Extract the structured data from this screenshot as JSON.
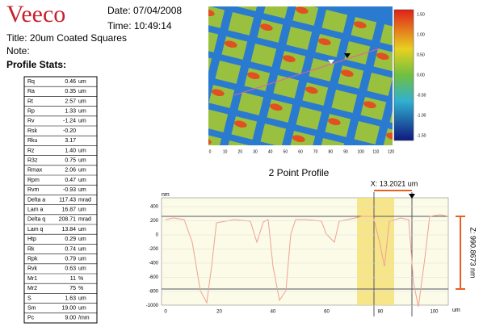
{
  "header": {
    "logo": "Veeco",
    "date": "Date: 07/04/2008",
    "time": "Time: 10:49:14",
    "title": "Title: 20um Coated Squares",
    "note": "Note:",
    "stats_heading": "Profile Stats:"
  },
  "stats": {
    "rows": [
      [
        "Rq",
        "0.46",
        "um"
      ],
      [
        "Ra",
        "0.35",
        "um"
      ],
      [
        "Rt",
        "2.57",
        "um"
      ],
      [
        "Rp",
        "1.33",
        "um"
      ],
      [
        "Rv",
        "-1.24",
        "um"
      ],
      [
        "Rsk",
        "-0.20",
        ""
      ],
      [
        "Rku",
        "3.17",
        ""
      ],
      [
        "Rz",
        "1.40",
        "um"
      ],
      [
        "R3z",
        "0.75",
        "um"
      ],
      [
        "Rmax",
        "2.06",
        "um"
      ],
      [
        "Rpm",
        "0.47",
        "um"
      ],
      [
        "Rvm",
        "-0.93",
        "um"
      ],
      [
        "Delta a",
        "117.43",
        "mrad"
      ],
      [
        "Lam a",
        "16.87",
        "um"
      ],
      [
        "Delta q",
        "208.71",
        "mrad"
      ],
      [
        "Lam q",
        "13.84",
        "um"
      ],
      [
        "Htp",
        "0.29",
        "um"
      ],
      [
        "Rk",
        "0.74",
        "um"
      ],
      [
        "Rpk",
        "0.79",
        "um"
      ],
      [
        "Rvk",
        "0.63",
        "um"
      ],
      [
        "Mr1",
        "11",
        "%"
      ],
      [
        "Mr2",
        "75",
        "%"
      ],
      [
        "S",
        "1.63",
        "um"
      ],
      [
        "Sm",
        "19.00",
        "um"
      ],
      [
        "Pc",
        "9.00",
        "/mm"
      ]
    ]
  },
  "image": {
    "x_ticks": [
      "0",
      "10",
      "20",
      "30",
      "40",
      "50",
      "60",
      "70",
      "80",
      "90",
      "100",
      "110",
      "120"
    ],
    "colorbar_ticks": [
      "1.50",
      "1.00",
      "0.50",
      "0.00",
      "-0.50",
      "-1.00",
      "-1.50"
    ]
  },
  "profile": {
    "title": "2 Point Profile",
    "x_readout": "X: 13.2021 um",
    "z_readout": "Z: 990.8673 nm",
    "y_unit": "nm",
    "x_unit": "um",
    "y_ticks": [
      "400",
      "200",
      "0",
      "-200",
      "-400",
      "-600",
      "-800",
      "-1000"
    ],
    "x_ticks": [
      "0",
      "20",
      "40",
      "60",
      "80",
      "100"
    ]
  }
}
